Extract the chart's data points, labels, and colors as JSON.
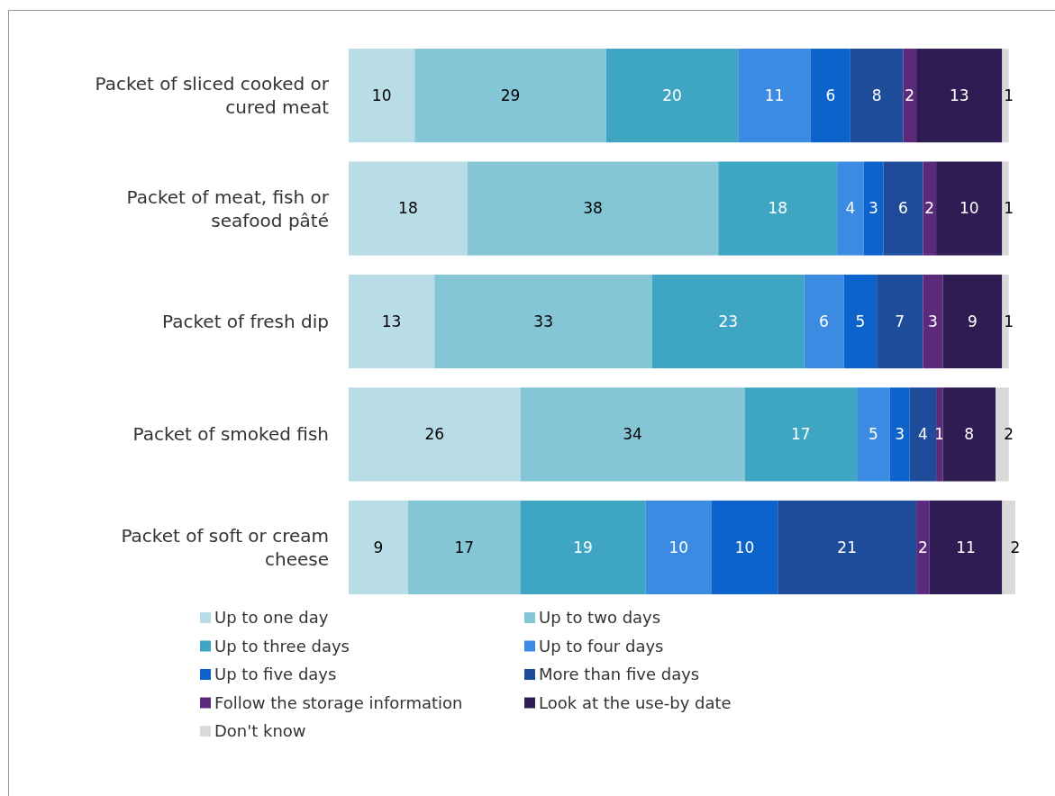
{
  "chart_data": {
    "type": "bar",
    "orientation": "horizontal",
    "stacked": true,
    "data_labels": true,
    "legend": "bottom",
    "categories": [
      "Packet of sliced cooked or cured meat",
      "Packet of meat, fish or seafood pâté",
      "Packet of fresh dip",
      "Packet of smoked fish",
      "Packet of soft or cream cheese"
    ],
    "series": [
      {
        "name": "Up to one day",
        "color": "#b8dde6",
        "values": [
          10,
          18,
          13,
          26,
          9
        ]
      },
      {
        "name": "Up to two days",
        "color": "#84c5d6",
        "values": [
          29,
          38,
          33,
          34,
          17
        ]
      },
      {
        "name": "Up to three days",
        "color": "#3ea5c3",
        "values": [
          20,
          18,
          23,
          17,
          19
        ]
      },
      {
        "name": "Up to four days",
        "color": "#3b8be3",
        "values": [
          11,
          4,
          6,
          5,
          10
        ]
      },
      {
        "name": "Up to five days",
        "color": "#0d63cc",
        "values": [
          6,
          3,
          5,
          3,
          10
        ]
      },
      {
        "name": "More than five days",
        "color": "#1f4b9b",
        "values": [
          8,
          6,
          7,
          4,
          21
        ]
      },
      {
        "name": "Follow the storage information",
        "color": "#5b2a7c",
        "values": [
          2,
          2,
          3,
          1,
          2
        ]
      },
      {
        "name": "Look at the use-by date",
        "color": "#2e1c52",
        "values": [
          13,
          10,
          9,
          8,
          11
        ]
      },
      {
        "name": "Don't know",
        "color": "#d9d9d9",
        "values": [
          1,
          1,
          1,
          2,
          2
        ]
      }
    ]
  }
}
